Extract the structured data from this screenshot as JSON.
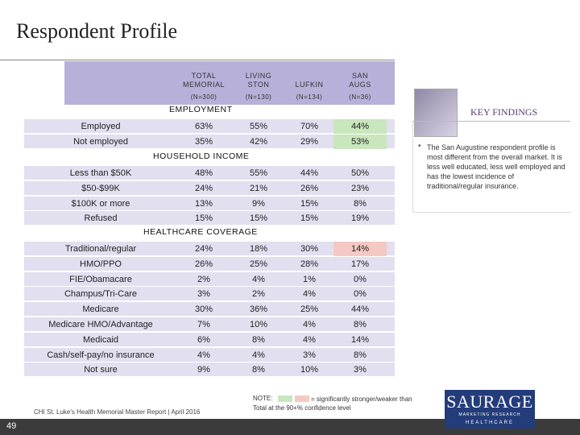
{
  "header": {
    "title": "Respondent Profile"
  },
  "table": {
    "columns": [
      {
        "name": "TOTAL MEMORIAL",
        "n": "(N=300)"
      },
      {
        "name": "LIVING STON",
        "n": "(N=130)"
      },
      {
        "name": "LUFKIN",
        "n": "(N=134)"
      },
      {
        "name": "SAN AUGS",
        "n": "(N=36)"
      }
    ],
    "sections": [
      {
        "title": "EMPLOYMENT",
        "rows": [
          {
            "label": "Employed",
            "values": [
              "63%",
              "55%",
              "70%",
              "44%"
            ],
            "highlight": {
              "3": "green"
            }
          },
          {
            "label": "Not employed",
            "values": [
              "35%",
              "42%",
              "29%",
              "53%"
            ],
            "highlight": {
              "3": "green"
            }
          }
        ]
      },
      {
        "title": "HOUSEHOLD INCOME",
        "rows": [
          {
            "label": "Less than $50K",
            "values": [
              "48%",
              "55%",
              "44%",
              "50%"
            ]
          },
          {
            "label": "$50-$99K",
            "values": [
              "24%",
              "21%",
              "26%",
              "23%"
            ]
          },
          {
            "label": "$100K or more",
            "values": [
              "13%",
              "9%",
              "15%",
              "8%"
            ]
          },
          {
            "label": "Refused",
            "values": [
              "15%",
              "15%",
              "15%",
              "19%"
            ]
          }
        ]
      },
      {
        "title": "HEALTHCARE COVERAGE",
        "rows": [
          {
            "label": "Traditional/regular",
            "values": [
              "24%",
              "18%",
              "30%",
              "14%"
            ],
            "highlight": {
              "3": "pink"
            }
          },
          {
            "label": "HMO/PPO",
            "values": [
              "26%",
              "25%",
              "28%",
              "17%"
            ]
          },
          {
            "label": "FIE/Obamacare",
            "values": [
              "2%",
              "4%",
              "1%",
              "0%"
            ]
          },
          {
            "label": "Champus/Tri-Care",
            "values": [
              "3%",
              "2%",
              "4%",
              "0%"
            ]
          },
          {
            "label": "Medicare",
            "values": [
              "30%",
              "36%",
              "25%",
              "44%"
            ]
          },
          {
            "label": "Medicare HMO/Advantage",
            "values": [
              "7%",
              "10%",
              "4%",
              "8%"
            ]
          },
          {
            "label": "Medicaid",
            "values": [
              "6%",
              "8%",
              "4%",
              "14%"
            ]
          },
          {
            "label": "Cash/self-pay/no insurance",
            "values": [
              "4%",
              "4%",
              "3%",
              "8%"
            ]
          },
          {
            "label": "Not sure",
            "values": [
              "9%",
              "8%",
              "10%",
              "3%"
            ]
          }
        ]
      }
    ]
  },
  "key_findings": {
    "title": "KEY FINDINGS",
    "bullet": "The San Augustine respondent profile is most different from the overall market. It is less well educated, less well employed and has the lowest incidence of traditional/regular insurance."
  },
  "footer": {
    "source": "CHI St. Luke's Health Memorial Master Report | April 2016",
    "note_label": "NOTE:",
    "note_text": "= significantly stronger/weaker than Total at the 90+% confidence level",
    "page": "49",
    "logo": "SAURAGE",
    "logo_sub": "MARKETING RESEARCH",
    "logo_sub2": "HEALTHCARE"
  }
}
